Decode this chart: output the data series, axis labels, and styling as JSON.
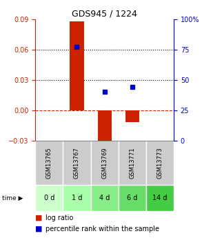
{
  "title": "GDS945 / 1224",
  "samples": [
    "GSM13765",
    "GSM13767",
    "GSM13769",
    "GSM13771",
    "GSM13773"
  ],
  "time_labels": [
    "0 d",
    "1 d",
    "4 d",
    "6 d",
    "14 d"
  ],
  "log_ratio": [
    0.0,
    0.088,
    -0.038,
    -0.012,
    0.0
  ],
  "percentile_rank": [
    null,
    0.77,
    0.4,
    0.44,
    null
  ],
  "left_ylim": [
    -0.03,
    0.09
  ],
  "right_ylim": [
    0,
    100
  ],
  "left_yticks": [
    -0.03,
    0,
    0.03,
    0.06,
    0.09
  ],
  "right_yticks": [
    0,
    25,
    50,
    75,
    100
  ],
  "bar_color": "#cc2200",
  "dot_color": "#0000cc",
  "hline_dashed_color": "#cc2200",
  "dotted_line_color": "#000000",
  "sample_bg_color": "#cccccc",
  "time_bg_colors": [
    "#ccffcc",
    "#aaffaa",
    "#88ee88",
    "#66dd66",
    "#44cc44"
  ],
  "legend_bar_label": "log ratio",
  "legend_dot_label": "percentile rank within the sample",
  "left_axis_color": "#cc2200",
  "right_axis_color": "#0000cc",
  "title_fontsize": 9,
  "tick_fontsize": 7,
  "sample_fontsize": 6,
  "time_fontsize": 7,
  "legend_fontsize": 7
}
